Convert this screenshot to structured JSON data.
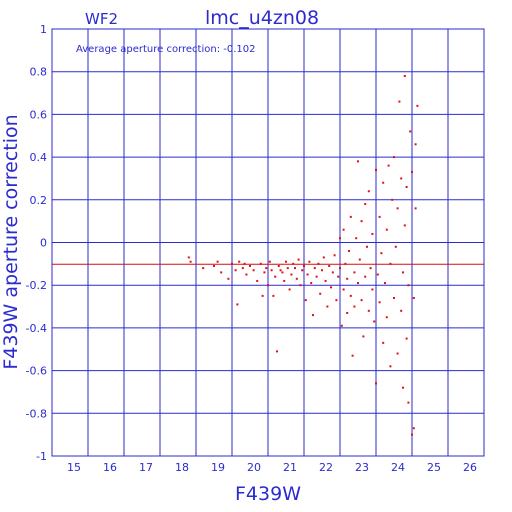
{
  "chart_data": {
    "type": "scatter",
    "title": "lmc_u4zn08",
    "panel_label": "WF2",
    "annotation": "Average aperture correction:  -0.102",
    "xlabel": "F439W",
    "ylabel": "F439W aperture correction",
    "xlim": [
      14,
      26
    ],
    "ylim": [
      -1,
      1
    ],
    "x_tick_labels": [
      "15",
      "16",
      "17",
      "18",
      "19",
      "20",
      "21",
      "22",
      "23",
      "24",
      "25",
      "26"
    ],
    "y_tick_labels": [
      "-1",
      "-0.8",
      "-0.6",
      "-0.4",
      "-0.2",
      "0",
      "0.2",
      "0.4",
      "0.6",
      "0.8",
      "1"
    ],
    "x_ticks": [
      15,
      16,
      17,
      18,
      19,
      20,
      21,
      22,
      23,
      24,
      25,
      26
    ],
    "y_ticks": [
      -1,
      -0.8,
      -0.6,
      -0.4,
      -0.2,
      0,
      0.2,
      0.4,
      0.6,
      0.8,
      1
    ],
    "grid": true,
    "reference_line": -0.102,
    "colors": {
      "axes": "#2b2bd0",
      "points": "#e01010",
      "reference_line": "#d01010"
    },
    "points": [
      [
        17.8,
        -0.07
      ],
      [
        17.85,
        -0.09
      ],
      [
        18.2,
        -0.12
      ],
      [
        18.5,
        -0.11
      ],
      [
        18.6,
        -0.09
      ],
      [
        18.7,
        -0.14
      ],
      [
        18.9,
        -0.17
      ],
      [
        19.0,
        -0.1
      ],
      [
        19.1,
        -0.13
      ],
      [
        19.15,
        -0.29
      ],
      [
        19.2,
        -0.09
      ],
      [
        19.3,
        -0.12
      ],
      [
        19.35,
        -0.1
      ],
      [
        19.4,
        -0.15
      ],
      [
        19.5,
        -0.11
      ],
      [
        19.6,
        -0.13
      ],
      [
        19.7,
        -0.18
      ],
      [
        19.8,
        -0.1
      ],
      [
        19.85,
        -0.25
      ],
      [
        19.9,
        -0.14
      ],
      [
        19.95,
        -0.12
      ],
      [
        20.0,
        -0.2
      ],
      [
        20.05,
        -0.09
      ],
      [
        20.1,
        -0.13
      ],
      [
        20.15,
        -0.25
      ],
      [
        20.2,
        -0.16
      ],
      [
        20.25,
        -0.51
      ],
      [
        20.3,
        -0.11
      ],
      [
        20.35,
        -0.13
      ],
      [
        20.4,
        -0.14
      ],
      [
        20.45,
        -0.18
      ],
      [
        20.5,
        -0.09
      ],
      [
        20.55,
        -0.12
      ],
      [
        20.6,
        -0.22
      ],
      [
        20.65,
        -0.15
      ],
      [
        20.7,
        -0.1
      ],
      [
        20.75,
        -0.12
      ],
      [
        20.8,
        -0.17
      ],
      [
        20.85,
        -0.08
      ],
      [
        20.9,
        -0.2
      ],
      [
        20.95,
        -0.13
      ],
      [
        21.0,
        -0.11
      ],
      [
        21.05,
        -0.27
      ],
      [
        21.1,
        -0.15
      ],
      [
        21.15,
        -0.09
      ],
      [
        21.2,
        -0.19
      ],
      [
        21.25,
        -0.34
      ],
      [
        21.3,
        -0.12
      ],
      [
        21.35,
        -0.16
      ],
      [
        21.4,
        -0.1
      ],
      [
        21.45,
        -0.24
      ],
      [
        21.5,
        -0.13
      ],
      [
        21.55,
        -0.07
      ],
      [
        21.6,
        -0.18
      ],
      [
        21.65,
        -0.3
      ],
      [
        21.7,
        -0.11
      ],
      [
        21.75,
        -0.21
      ],
      [
        21.8,
        -0.14
      ],
      [
        21.85,
        -0.06
      ],
      [
        21.9,
        -0.27
      ],
      [
        21.95,
        -0.16
      ],
      [
        22.0,
        -0.12
      ],
      [
        22.0,
        0.02
      ],
      [
        22.05,
        -0.39
      ],
      [
        22.1,
        -0.22
      ],
      [
        22.1,
        0.06
      ],
      [
        22.15,
        -0.1
      ],
      [
        22.2,
        -0.17
      ],
      [
        22.2,
        -0.33
      ],
      [
        22.25,
        -0.04
      ],
      [
        22.3,
        -0.25
      ],
      [
        22.3,
        0.12
      ],
      [
        22.35,
        -0.53
      ],
      [
        22.4,
        -0.14
      ],
      [
        22.4,
        -0.3
      ],
      [
        22.45,
        0.02
      ],
      [
        22.5,
        -0.19
      ],
      [
        22.5,
        0.38
      ],
      [
        22.55,
        -0.08
      ],
      [
        22.6,
        -0.27
      ],
      [
        22.6,
        0.1
      ],
      [
        22.65,
        -0.44
      ],
      [
        22.7,
        -0.16
      ],
      [
        22.7,
        0.18
      ],
      [
        22.75,
        -0.02
      ],
      [
        22.8,
        -0.32
      ],
      [
        22.8,
        0.24
      ],
      [
        22.85,
        -0.12
      ],
      [
        22.9,
        -0.22
      ],
      [
        22.9,
        0.04
      ],
      [
        22.95,
        -0.37
      ],
      [
        23.0,
        -0.66
      ],
      [
        23.0,
        0.34
      ],
      [
        23.05,
        -0.15
      ],
      [
        23.1,
        -0.28
      ],
      [
        23.1,
        0.12
      ],
      [
        23.15,
        -0.05
      ],
      [
        23.2,
        -0.47
      ],
      [
        23.2,
        0.28
      ],
      [
        23.25,
        -0.19
      ],
      [
        23.3,
        0.06
      ],
      [
        23.3,
        -0.35
      ],
      [
        23.35,
        0.36
      ],
      [
        23.4,
        -0.58
      ],
      [
        23.4,
        -0.1
      ],
      [
        23.45,
        0.2
      ],
      [
        23.5,
        -0.26
      ],
      [
        23.5,
        0.4
      ],
      [
        23.55,
        -0.02
      ],
      [
        23.6,
        -0.52
      ],
      [
        23.6,
        0.16
      ],
      [
        23.65,
        0.66
      ],
      [
        23.7,
        -0.32
      ],
      [
        23.7,
        0.3
      ],
      [
        23.75,
        -0.68
      ],
      [
        23.75,
        -0.14
      ],
      [
        23.8,
        0.78
      ],
      [
        23.8,
        0.08
      ],
      [
        23.85,
        -0.45
      ],
      [
        23.85,
        0.26
      ],
      [
        23.9,
        -0.2
      ],
      [
        23.9,
        -0.75
      ],
      [
        23.95,
        0.52
      ],
      [
        24.0,
        -0.9
      ],
      [
        24.0,
        0.33
      ],
      [
        24.05,
        -0.87
      ],
      [
        24.05,
        -0.26
      ],
      [
        24.1,
        0.46
      ],
      [
        24.1,
        0.16
      ],
      [
        24.15,
        0.64
      ]
    ]
  }
}
